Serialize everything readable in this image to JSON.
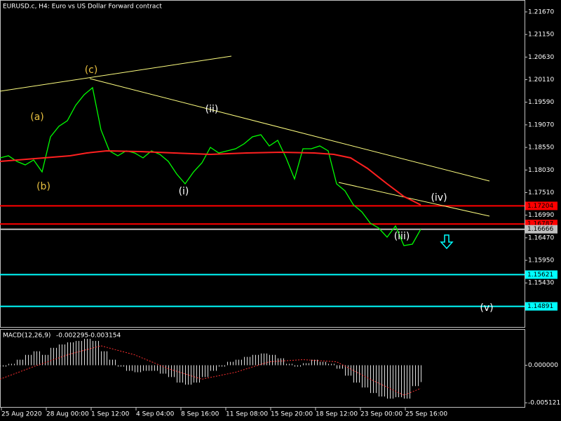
{
  "chart_data": [
    {
      "type": "line",
      "title": "EURUSD.c, H4:  Euro vs US Dollar Forward contract",
      "xlim": [
        0,
        187
      ],
      "xticks": [
        {
          "value": 0,
          "label": "25 Aug 2020"
        },
        {
          "value": 16,
          "label": "28 Aug 00:00"
        },
        {
          "value": 32,
          "label": "1 Sep 12:00"
        },
        {
          "value": 48,
          "label": "4 Sep 04:00"
        },
        {
          "value": 64,
          "label": "8 Sep 16:00"
        },
        {
          "value": 80,
          "label": "11 Sep 08:00"
        },
        {
          "value": 96,
          "label": "15 Sep 20:00"
        },
        {
          "value": 112,
          "label": "18 Sep 12:00"
        },
        {
          "value": 128,
          "label": "23 Sep 00:00"
        },
        {
          "value": 144,
          "label": "25 Sep 16:00"
        }
      ],
      "ylim": [
        1.144,
        1.21944
      ],
      "yticks": [
        {
          "value": 1.2167,
          "label": "1.21670"
        },
        {
          "value": 1.2115,
          "label": "1.21150"
        },
        {
          "value": 1.2063,
          "label": "1.20630"
        },
        {
          "value": 1.2011,
          "label": "1.20110"
        },
        {
          "value": 1.1959,
          "label": "1.19590"
        },
        {
          "value": 1.1907,
          "label": "1.19070"
        },
        {
          "value": 1.1855,
          "label": "1.18550"
        },
        {
          "value": 1.1803,
          "label": "1.18030"
        },
        {
          "value": 1.1751,
          "label": "1.17510"
        },
        {
          "value": 1.1699,
          "label": "1.16990"
        },
        {
          "value": 1.1647,
          "label": "1.16470"
        },
        {
          "value": 1.1595,
          "label": "1.15950"
        },
        {
          "value": 1.1543,
          "label": "1.15430"
        }
      ],
      "series": [
        {
          "color": "#00ff00",
          "x": [
            0,
            3,
            6,
            9,
            12,
            15,
            18,
            21,
            24,
            27,
            30,
            33,
            36,
            39,
            42,
            45,
            48,
            51,
            54,
            57,
            60,
            63,
            66,
            69,
            72,
            75,
            78,
            81,
            84,
            87,
            90,
            93,
            96,
            99,
            102,
            105,
            108,
            111,
            114,
            117,
            120,
            123,
            126,
            129,
            132,
            135,
            138,
            141,
            144,
            147,
            150
          ],
          "values": [
            1.18309,
            1.18358,
            1.18229,
            1.18148,
            1.18261,
            1.17986,
            1.18794,
            1.19036,
            1.19166,
            1.19521,
            1.19763,
            1.19925,
            1.18956,
            1.18471,
            1.18358,
            1.18471,
            1.18422,
            1.18309,
            1.18471,
            1.1839,
            1.18229,
            1.17938,
            1.17712,
            1.17986,
            1.18196,
            1.18552,
            1.18422,
            1.18471,
            1.18519,
            1.18632,
            1.18794,
            1.18842,
            1.18584,
            1.18713,
            1.18309,
            1.17825,
            1.18519,
            1.18519,
            1.18584,
            1.18471,
            1.17712,
            1.1755,
            1.17227,
            1.17066,
            1.16807,
            1.16694,
            1.16484,
            1.16742,
            1.1629,
            1.16322,
            1.16666
          ]
        },
        {
          "color": "#ff2020",
          "x": [
            0,
            25,
            31,
            38,
            50,
            62,
            75,
            88,
            100,
            112,
            119,
            125,
            131,
            138,
            144,
            150
          ],
          "values": [
            1.18229,
            1.18358,
            1.18422,
            1.18471,
            1.18455,
            1.18422,
            1.1839,
            1.18422,
            1.18439,
            1.18422,
            1.1839,
            1.18309,
            1.18067,
            1.17712,
            1.17421,
            1.17227
          ]
        }
      ],
      "levels": [
        {
          "value": 1.17204,
          "color": "#ff0000"
        },
        {
          "value": 1.16787,
          "color": "#ff0000"
        },
        {
          "value": 1.16666,
          "color": "#c0c0c0"
        },
        {
          "value": 1.15621,
          "color": "#00ffff"
        },
        {
          "value": 1.14891,
          "color": "#00ffff"
        }
      ],
      "trendlines": [
        {
          "color": "#ffff80",
          "x": [
            0,
            82.5
          ],
          "values": [
            1.19844,
            1.20652
          ]
        },
        {
          "color": "#ffff80",
          "x": [
            32,
            174.5
          ],
          "values": [
            1.20135,
            1.17776
          ]
        },
        {
          "color": "#ffff80",
          "x": [
            120.75,
            174.5
          ],
          "values": [
            1.17744,
            1.16969
          ]
        }
      ],
      "annotations": [
        {
          "text": "(a)",
          "x": 13.25,
          "y": 1.19246,
          "color": "#e8c040"
        },
        {
          "text": "(b)",
          "x": 15.5,
          "y": 1.17647,
          "color": "#e8c040"
        },
        {
          "text": "(c)",
          "x": 32.5,
          "y": 1.20329,
          "color": "#e8c040"
        },
        {
          "text": "(i)",
          "x": 65.5,
          "y": 1.17534,
          "color": "#ffffff"
        },
        {
          "text": "(ii)",
          "x": 75.5,
          "y": 1.19424,
          "color": "#ffffff"
        },
        {
          "text": "(iii)",
          "x": 143.25,
          "y": 1.165,
          "color": "#ffffff"
        },
        {
          "text": "(iv)",
          "x": 156.5,
          "y": 1.17389,
          "color": "#ffffff"
        },
        {
          "text": "(v)",
          "x": 173.5,
          "y": 1.14852,
          "color": "#ffffff"
        }
      ],
      "arrow": {
        "x": 159.25,
        "y": 1.16371,
        "color": "#00ffff"
      }
    },
    {
      "type": "macd",
      "title": "MACD(12,26,9)",
      "xlim": [
        0,
        187
      ],
      "ylim": [
        -0.00569,
        0.004836
      ],
      "yticks": [
        {
          "value": 0,
          "label": "0.000000"
        },
        -0.005121
      ],
      "x": [
        0,
        3,
        6,
        9,
        12,
        15,
        18,
        21,
        24,
        27,
        30,
        33,
        36,
        39,
        42,
        45,
        48,
        51,
        54,
        57,
        60,
        63,
        66,
        69,
        72,
        75,
        78,
        81,
        84,
        87,
        90,
        93,
        96,
        99,
        102,
        105,
        108,
        111,
        114,
        117,
        120,
        123,
        126,
        129,
        132,
        135,
        138,
        141,
        144,
        147,
        150
      ],
      "values": [
        -0.00019,
        0.00019,
        0.00076,
        0.00142,
        0.0019,
        0.00142,
        0.00237,
        0.00284,
        0.00313,
        0.00332,
        0.0036,
        0.00332,
        0.0019,
        0.00076,
        -0.00019,
        -0.00076,
        -0.00095,
        -0.00076,
        -0.00076,
        -0.00114,
        -0.00161,
        -0.00237,
        -0.00265,
        -0.00237,
        -0.00161,
        -0.00076,
        -0.00019,
        0.00047,
        0.00076,
        0.00114,
        0.00142,
        0.00161,
        0.00142,
        0.00095,
        0.00019,
        -0.00019,
        0.00028,
        0.00076,
        0.00047,
        0.00019,
        -0.00047,
        -0.00142,
        -0.00237,
        -0.00303,
        -0.00379,
        -0.00427,
        -0.00455,
        -0.00436,
        -0.00455,
        -0.00284,
        -0.002295
      ],
      "signal": {
        "color": "#ff3030",
        "x": [
          0,
          12,
          24,
          36,
          48,
          60,
          72,
          84,
          96,
          108,
          120,
          132,
          144,
          150
        ],
        "values": [
          -0.0019,
          -0.00019,
          0.00142,
          0.00265,
          0.00142,
          -0.00047,
          -0.0019,
          -0.00095,
          0.00047,
          0.00076,
          0.00047,
          -0.0019,
          -0.00408,
          -0.003154
        ]
      }
    }
  ]
}
